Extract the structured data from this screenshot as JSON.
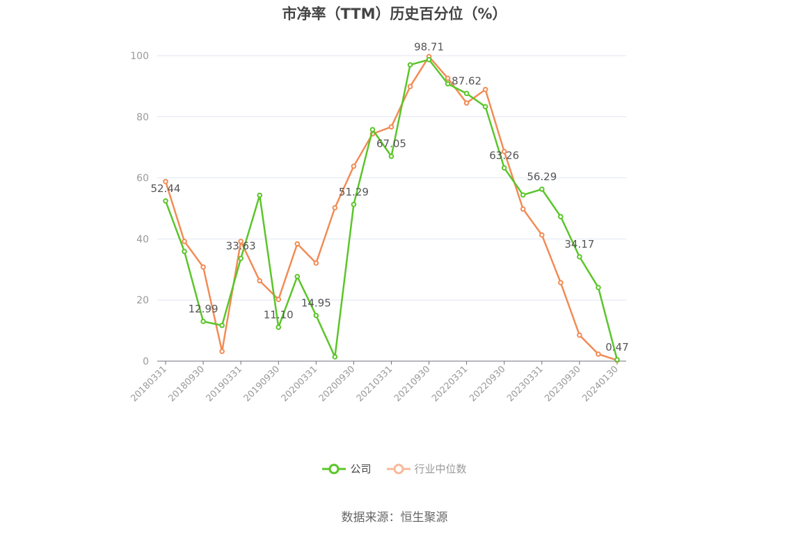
{
  "chart_data": {
    "type": "line",
    "title": "市净率（TTM）历史百分位（%）",
    "source": "数据来源：恒生聚源",
    "x_tick_labels": [
      "20180331",
      "20180930",
      "20190331",
      "20190930",
      "20200331",
      "20200930",
      "20210331",
      "20210930",
      "20220331",
      "20220930",
      "20230331",
      "20230930",
      "20240130"
    ],
    "ylim": [
      0,
      100
    ],
    "y_ticks": [
      0,
      20,
      40,
      60,
      80,
      100
    ],
    "grid": true,
    "legend_position": "bottom",
    "series": [
      {
        "name": "公司",
        "color": "#5ac529",
        "values": [
          52.44,
          35.9,
          12.99,
          11.7,
          33.63,
          54.3,
          11.1,
          27.7,
          14.95,
          1.4,
          51.29,
          75.8,
          67.05,
          97.0,
          98.71,
          90.8,
          87.62,
          83.3,
          63.26,
          54.4,
          56.29,
          47.3,
          34.17,
          24.1,
          0.47
        ],
        "data_labels": [
          {
            "index": 0,
            "text": "52.44"
          },
          {
            "index": 2,
            "text": "12.99"
          },
          {
            "index": 4,
            "text": "33.63"
          },
          {
            "index": 6,
            "text": "11.10"
          },
          {
            "index": 8,
            "text": "14.95"
          },
          {
            "index": 10,
            "text": "51.29"
          },
          {
            "index": 12,
            "text": "67.05"
          },
          {
            "index": 14,
            "text": "98.71"
          },
          {
            "index": 16,
            "text": "87.62"
          },
          {
            "index": 18,
            "text": "63.26"
          },
          {
            "index": 20,
            "text": "56.29"
          },
          {
            "index": 22,
            "text": "34.17"
          },
          {
            "index": 24,
            "text": "0.47"
          }
        ]
      },
      {
        "name": "行业中位数",
        "color": "#f28b55",
        "values": [
          58.8,
          39.2,
          30.8,
          3.2,
          39.2,
          26.3,
          20.2,
          38.4,
          32.1,
          50.2,
          63.8,
          74.4,
          76.7,
          89.9,
          99.7,
          92.6,
          84.5,
          88.9,
          68.6,
          49.8,
          41.3,
          25.7,
          8.5,
          2.3,
          0.3
        ]
      }
    ]
  }
}
